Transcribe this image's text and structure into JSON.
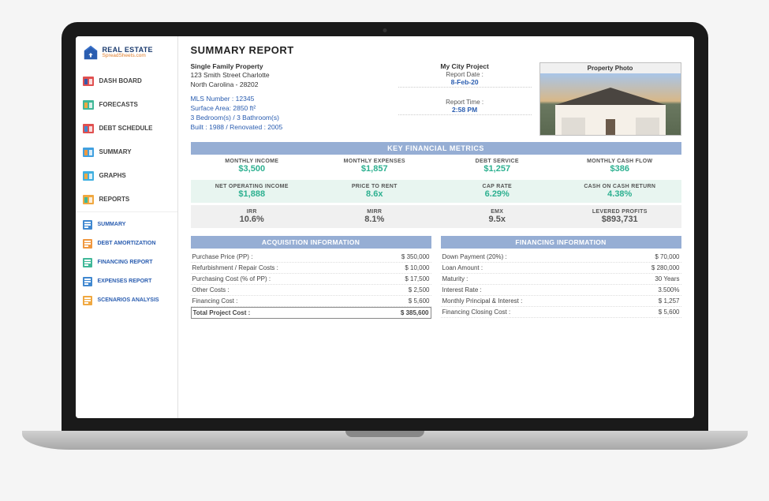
{
  "logo": {
    "main": "REAL ESTATE",
    "sub": "SpreadSheets.com"
  },
  "nav": [
    {
      "label": "DASH BOARD",
      "c1": "#e05050",
      "c2": "#3858a8"
    },
    {
      "label": "FORECASTS",
      "c1": "#40b898",
      "c2": "#f0a840"
    },
    {
      "label": "DEBT SCHEDULE",
      "c1": "#e05050",
      "c2": "#4088d0"
    },
    {
      "label": "SUMMARY",
      "c1": "#40a0e0",
      "c2": "#f09840"
    },
    {
      "label": "GRAPHS",
      "c1": "#40b0e0",
      "c2": "#f0a840"
    },
    {
      "label": "REPORTS",
      "c1": "#f0a840",
      "c2": "#40b898"
    }
  ],
  "subs": [
    {
      "label": "SUMMARY",
      "c": "#4088d0"
    },
    {
      "label": "DEBT AMORTIZATION",
      "c": "#f09840"
    },
    {
      "label": "FINANCING REPORT",
      "c": "#40b898"
    },
    {
      "label": "EXPENSES REPORT",
      "c": "#4088d0"
    },
    {
      "label": "SCENARIOS ANALYSIS",
      "c": "#f0a840"
    }
  ],
  "title": "SUMMARY REPORT",
  "property": {
    "type": "Single Family Property",
    "address": "123 Smith Street Charlotte",
    "citystate": "North Carolina - 28202",
    "mls": "MLS Number : 12345",
    "surface": "Surface Area: 2850 ft²",
    "rooms": "3 Bedroom(s) / 3 Bathroom(s)",
    "built": "Built : 1988 / Renovated : 2005"
  },
  "project": {
    "name": "My City Project",
    "date_label": "Report Date :",
    "date_value": "8-Feb-20",
    "time_label": "Report Time :",
    "time_value": "2:58 PM"
  },
  "photo_label": "Property Photo",
  "key_header": "KEY FINANCIAL METRICS",
  "rowA": [
    {
      "l": "MONTHLY  INCOME",
      "v": "$3,500"
    },
    {
      "l": "MONTHLY EXPENSES",
      "v": "$1,857"
    },
    {
      "l": "DEBT SERVICE",
      "v": "$1,257"
    },
    {
      "l": "MONTHLY CASH FLOW",
      "v": "$386"
    }
  ],
  "rowB": [
    {
      "l": "NET OPERATING INCOME",
      "v": "$1,888"
    },
    {
      "l": "PRICE TO RENT",
      "v": "8.6x"
    },
    {
      "l": "CAP RATE",
      "v": "6.29%"
    },
    {
      "l": "CASH ON CASH RETURN",
      "v": "4.38%"
    }
  ],
  "rowC": [
    {
      "l": "IRR",
      "v": "10.6%"
    },
    {
      "l": "MIRR",
      "v": "8.1%"
    },
    {
      "l": "EMX",
      "v": "9.5x"
    },
    {
      "l": "LEVERED PROFITS",
      "v": "$893,731"
    }
  ],
  "acq": {
    "header": "ACQUISITION INFORMATION",
    "rows": [
      {
        "l": "Purchase Price (PP) :",
        "v": "$ 350,000"
      },
      {
        "l": "Refurbishment / Repair Costs :",
        "v": "$ 10,000"
      },
      {
        "l": "Purchasing Cost (% of PP) :",
        "v": "$ 17,500"
      },
      {
        "l": "Other Costs :",
        "v": "$ 2,500"
      },
      {
        "l": "Financing Cost :",
        "v": "$ 5,600"
      }
    ],
    "total": {
      "l": "Total Project Cost :",
      "v": "$ 385,600"
    }
  },
  "fin": {
    "header": "FINANCING INFORMATION",
    "rows": [
      {
        "l": "Down Payment (20%) :",
        "v": "$ 70,000"
      },
      {
        "l": "Loan Amount :",
        "v": "$ 280,000"
      },
      {
        "l": "Maturity :",
        "v": "30 Years"
      },
      {
        "l": "Interest Rate :",
        "v": "3.500%"
      },
      {
        "l": "Monthly Principal & Interest :",
        "v": "$ 1,257"
      },
      {
        "l": "Financing Closing Cost :",
        "v": "$ 5,600"
      }
    ]
  },
  "colors": {
    "header_bar": "#96aed4",
    "teal": "#2db090",
    "blue": "#2a5db0"
  }
}
